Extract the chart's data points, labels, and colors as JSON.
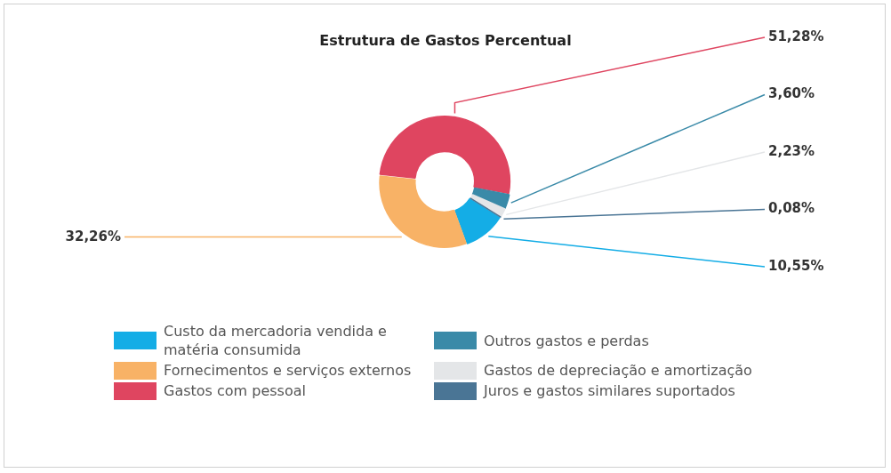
{
  "chart_data": {
    "type": "donut",
    "title": "Estrutura de Gastos Percentual",
    "categories": [
      "Custo da mercadoria vendida e matéria consumida",
      "Fornecimentos e serviços externos",
      "Gastos com pessoal",
      "Outros gastos e perdas",
      "Gastos de depreciação e amortização",
      "Juros e gastos similares suportados"
    ],
    "values": [
      10.55,
      32.26,
      51.28,
      3.6,
      2.23,
      0.08
    ],
    "value_labels": [
      "10,55%",
      "32,26%",
      "51,28%",
      "3,60%",
      "2,23%",
      "0,08%"
    ],
    "colors": [
      "#14ade6",
      "#f8b266",
      "#df4560",
      "#3a8aa8",
      "#e4e6e8",
      "#4a7595"
    ],
    "legend": "bottom"
  }
}
